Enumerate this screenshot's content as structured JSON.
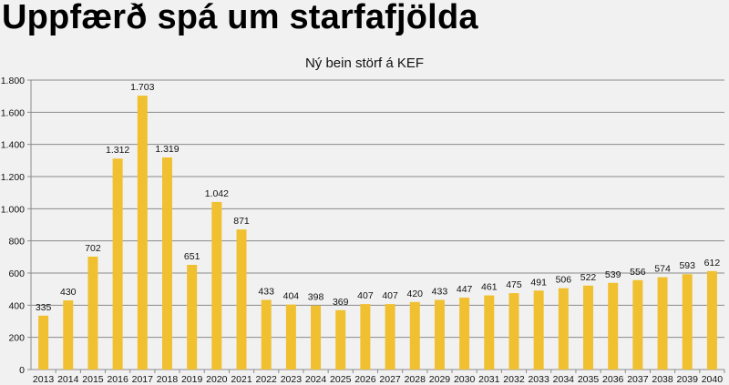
{
  "page": {
    "title": "Uppfærð spá um starfafjölda"
  },
  "chart_data": {
    "type": "bar",
    "title": "Ný bein störf á KEF",
    "xlabel": "",
    "ylabel": "",
    "ylim": [
      0,
      1800
    ],
    "yticks": [
      0,
      200,
      400,
      600,
      800,
      1000,
      1200,
      1400,
      1600,
      1800
    ],
    "thousands_separator": ".",
    "grid": true,
    "bar_color": "#f0c030",
    "categories": [
      "2013",
      "2014",
      "2015",
      "2016",
      "2017",
      "2018",
      "2019",
      "2020",
      "2021",
      "2022",
      "2023",
      "2024",
      "2025",
      "2026",
      "2027",
      "2028",
      "2029",
      "2030",
      "2031",
      "2032",
      "2033",
      "2034",
      "2035",
      "2036",
      "2037",
      "2038",
      "2039",
      "2040"
    ],
    "values": [
      335,
      430,
      702,
      1312,
      1703,
      1319,
      651,
      1042,
      871,
      433,
      404,
      398,
      369,
      407,
      407,
      420,
      433,
      447,
      461,
      475,
      491,
      506,
      522,
      539,
      556,
      574,
      593,
      612
    ]
  }
}
